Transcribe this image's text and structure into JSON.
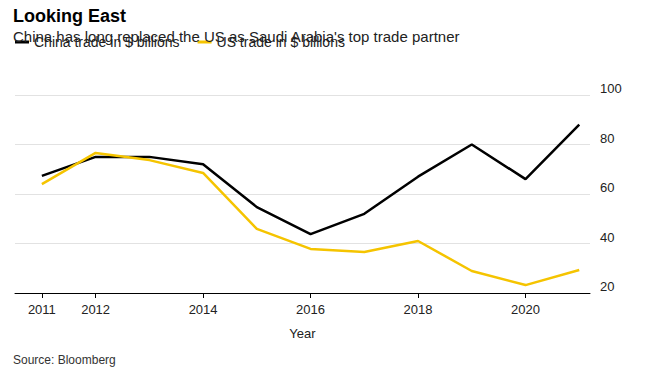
{
  "chart_data": {
    "type": "line",
    "title": "Looking East",
    "subtitle": "China has long replaced the US as Saudi Arabia's top trade partner",
    "x_label": "Year",
    "source": "Source: Bloomberg",
    "x": [
      2011,
      2012,
      2013,
      2014,
      2015,
      2016,
      2017,
      2018,
      2019,
      2020,
      2021
    ],
    "series": [
      {
        "name": "China trade in $ billions",
        "color": "#000000",
        "values": [
          67.3,
          75,
          75,
          72,
          54.7,
          43.8,
          52,
          67,
          80,
          66,
          88
        ]
      },
      {
        "name": "US trade in $ billions",
        "color": "#f5c400",
        "values": [
          64,
          76.6,
          73.7,
          68.5,
          45.9,
          37.8,
          36.6,
          41,
          28.9,
          23.2,
          29.3
        ]
      }
    ],
    "xlim": [
      2010.5,
      2021.2
    ],
    "xticks": [
      2011,
      2012,
      2014,
      2016,
      2018,
      2020
    ],
    "ylim": [
      20,
      100
    ],
    "yticks": [
      20,
      40,
      60,
      80,
      100
    ],
    "grid": true,
    "legend": "top-left"
  }
}
